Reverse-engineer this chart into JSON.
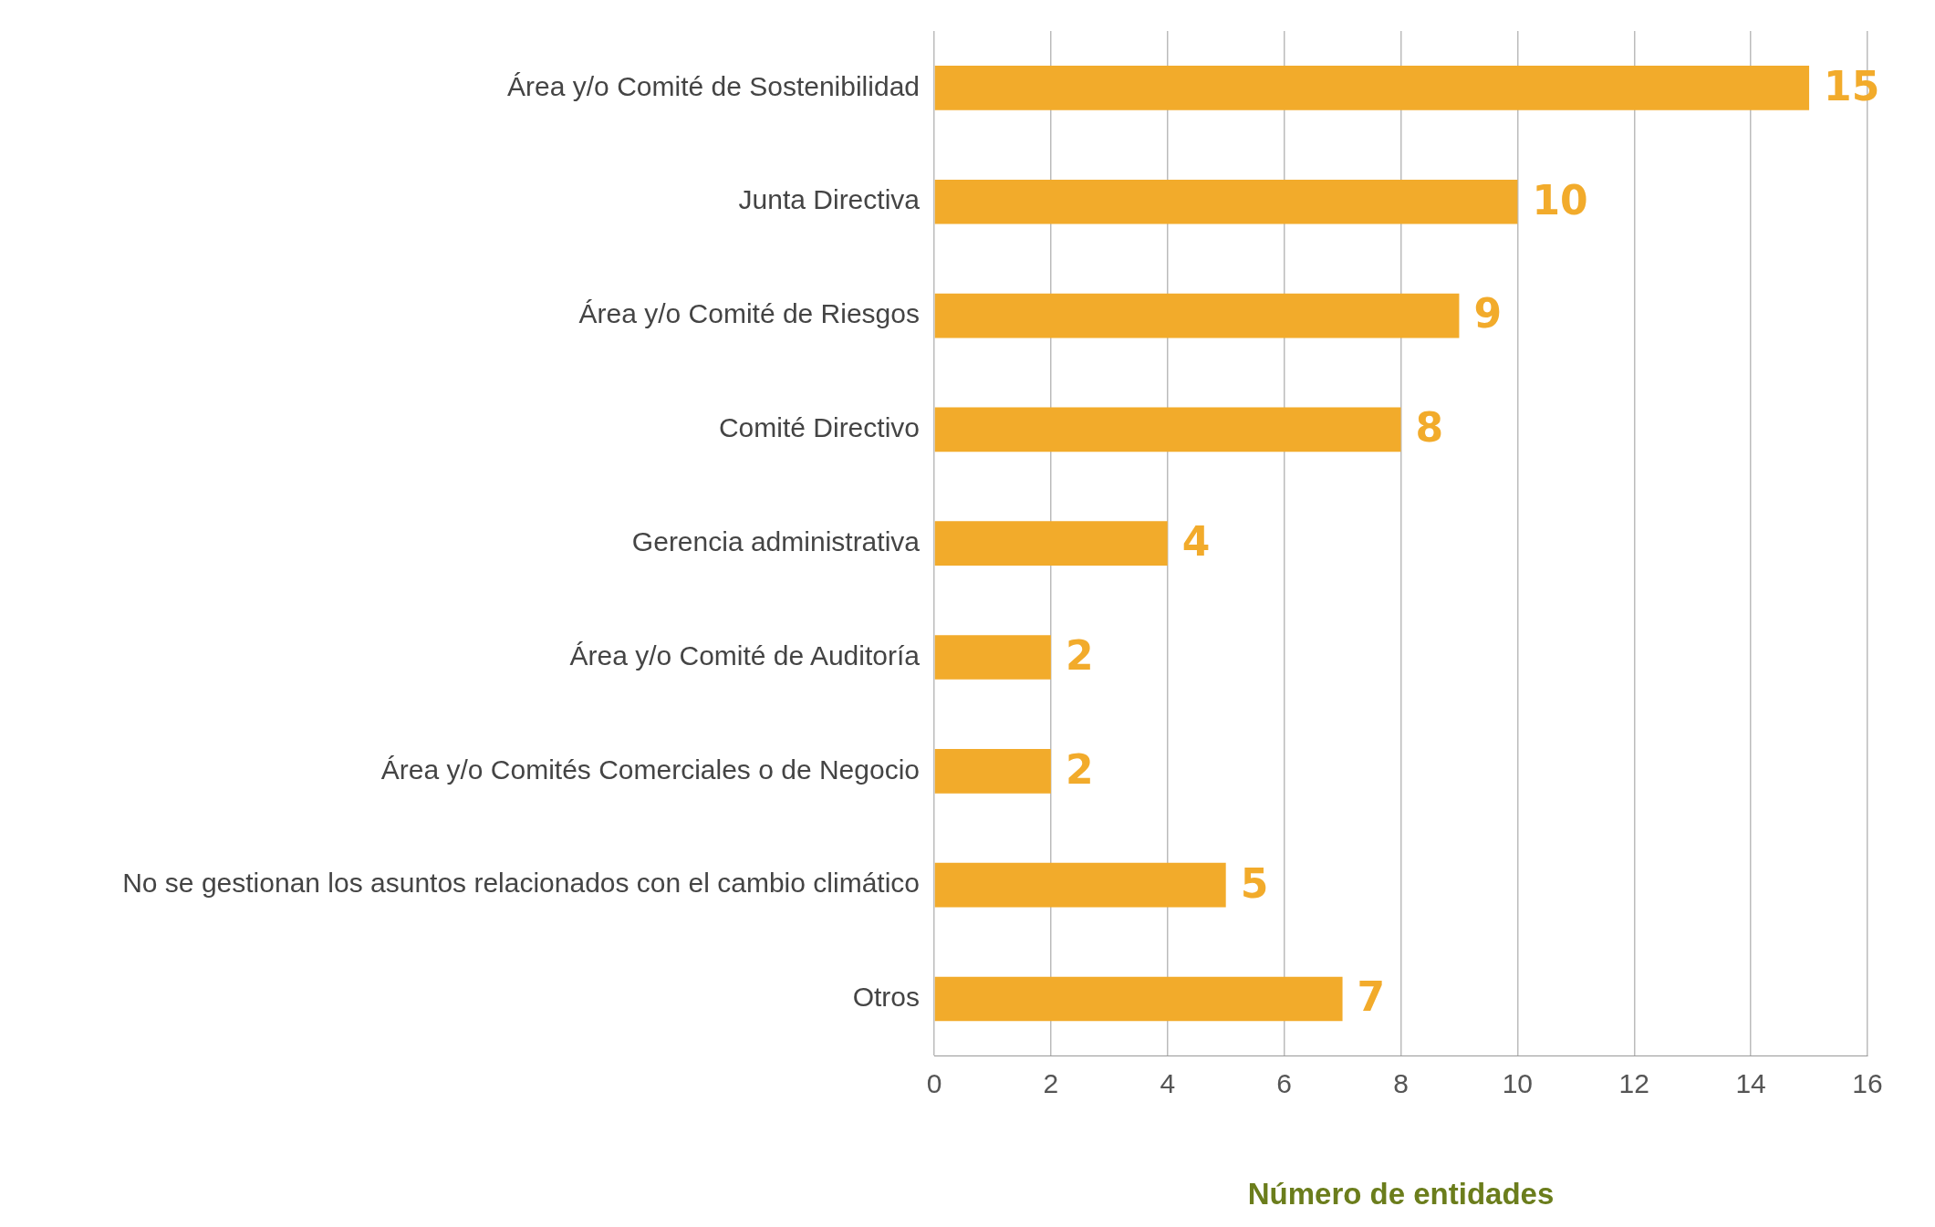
{
  "chart_data": {
    "type": "bar",
    "orientation": "horizontal",
    "xlabel": "Número de entidades",
    "categories": [
      "Área y/o Comité de Sostenibilidad",
      "Junta Directiva",
      "Área y/o Comité de Riesgos",
      "Comité Directivo",
      "Gerencia administrativa",
      "Área y/o Comité de Auditoría",
      "Área y/o Comités Comerciales o de Negocio",
      "No se gestionan los asuntos relacionados con el cambio climático",
      "Otros"
    ],
    "values": [
      15,
      10,
      9,
      8,
      4,
      2,
      2,
      5,
      7
    ],
    "color": "#f2ab2b",
    "xlim": [
      0,
      16
    ],
    "xticks": [
      0,
      2,
      4,
      6,
      8,
      10,
      12,
      14,
      16
    ],
    "grid": "x",
    "data_labels": true
  }
}
